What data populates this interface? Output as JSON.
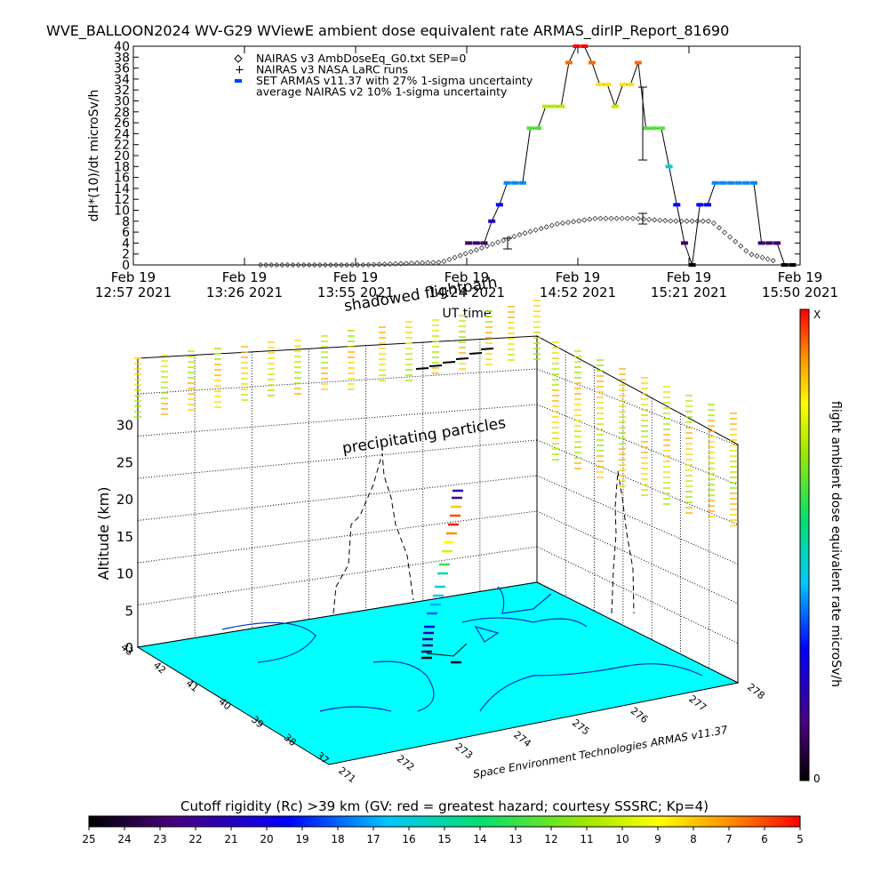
{
  "chart_data": [
    {
      "type": "scatter",
      "title": "WVE_BALLOON2024 WV-G29 WViewE ambient dose equivalent rate ARMAS_dirIP_Report_81690",
      "xlabel": "UT time",
      "ylabel": "dH*(10)/dt microSv/h",
      "ylim": [
        0,
        40
      ],
      "y_ticks": [
        0,
        2,
        4,
        6,
        8,
        10,
        12,
        14,
        16,
        18,
        20,
        22,
        24,
        26,
        28,
        30,
        32,
        34,
        36,
        38,
        40
      ],
      "x_ticks": [
        {
          "l1": "Feb 19",
          "l2": "12:57 2021"
        },
        {
          "l1": "Feb 19",
          "l2": "13:26 2021"
        },
        {
          "l1": "Feb 19",
          "l2": "13:55 2021"
        },
        {
          "l1": "Feb 19",
          "l2": "14:24 2021"
        },
        {
          "l1": "Feb 19",
          "l2": "14:52 2021"
        },
        {
          "l1": "Feb 19",
          "l2": "15:21 2021"
        },
        {
          "l1": "Feb 19",
          "l2": "15:50 2021"
        }
      ],
      "x_minutes_range": [
        0,
        173
      ],
      "legend": [
        {
          "symbol": "diamond",
          "text": "NAIRAS v3 AmbDoseEq_G0.txt SEP=0"
        },
        {
          "symbol": "plus",
          "text": "NAIRAS v3 NASA LaRC runs"
        },
        {
          "symbol": "blue-dash",
          "text": "SET ARMAS v11.37 with 27% 1-sigma uncertainty"
        },
        {
          "symbol": "none",
          "text": "average NAIRAS v2 10% 1-sigma uncertainty"
        }
      ],
      "legend_position": "top-left",
      "armas_series": {
        "name": "SET ARMAS v11.37",
        "x_min": [
          87,
          89,
          91,
          93,
          95,
          97,
          99,
          101,
          103,
          105,
          107,
          109,
          111,
          113,
          115,
          117,
          119,
          121,
          123,
          125,
          127,
          129,
          131,
          133,
          135,
          137,
          139,
          141,
          143,
          145,
          147,
          149,
          151,
          153,
          155,
          157,
          159,
          161,
          163,
          165,
          167,
          169,
          171
        ],
        "y": [
          4,
          4,
          4,
          8,
          11,
          15,
          15,
          15,
          25,
          25,
          29,
          29,
          29,
          37,
          40,
          40,
          37,
          33,
          33,
          29,
          33,
          33,
          37,
          25,
          25,
          25,
          18,
          11,
          4,
          0,
          11,
          11,
          15,
          15,
          15,
          15,
          15,
          15,
          4,
          4,
          4,
          0,
          0
        ]
      },
      "nairas_model": {
        "name": "NAIRAS v3",
        "x_min": [
          0,
          20,
          40,
          60,
          80,
          90,
          100,
          110,
          120,
          130,
          140,
          150,
          160,
          170,
          173
        ],
        "y": [
          0,
          0,
          0,
          0,
          0.5,
          3,
          5.5,
          7.5,
          8.5,
          8.5,
          8,
          8,
          2,
          0,
          0
        ]
      }
    },
    {
      "type": "scatter",
      "subtype": "3d-trajectory",
      "ylabel": "Altitude (km)",
      "z_ticks": [
        "0",
        "5",
        "10",
        "15",
        "20",
        "25",
        "30"
      ],
      "lat_ticks": [
        "37",
        "38",
        "39",
        "40",
        "41",
        "42",
        "43"
      ],
      "lon_ticks": [
        "271",
        "272",
        "273",
        "274",
        "275",
        "276",
        "277",
        "278"
      ],
      "annotations": [
        "shadowed flightpath",
        "precipitating particles"
      ],
      "colorbar_label": "flight ambient dose equivalent rate microSv/h",
      "colorbar_top": "X",
      "colorbar_bottom": "0",
      "credit": "Space Environment Technologies ARMAS v11.37"
    },
    {
      "type": "heatmap",
      "title": "Cutoff rigidity (Rc) >39 km (GV: red = greatest hazard; courtesy SSSRC; Kp=4)",
      "tick_labels": [
        "25",
        "24",
        "23",
        "22",
        "21",
        "20",
        "19",
        "18",
        "17",
        "16",
        "15",
        "14",
        "13",
        "12",
        "11",
        "10",
        "9",
        "8",
        "7",
        "6",
        "5"
      ]
    }
  ]
}
